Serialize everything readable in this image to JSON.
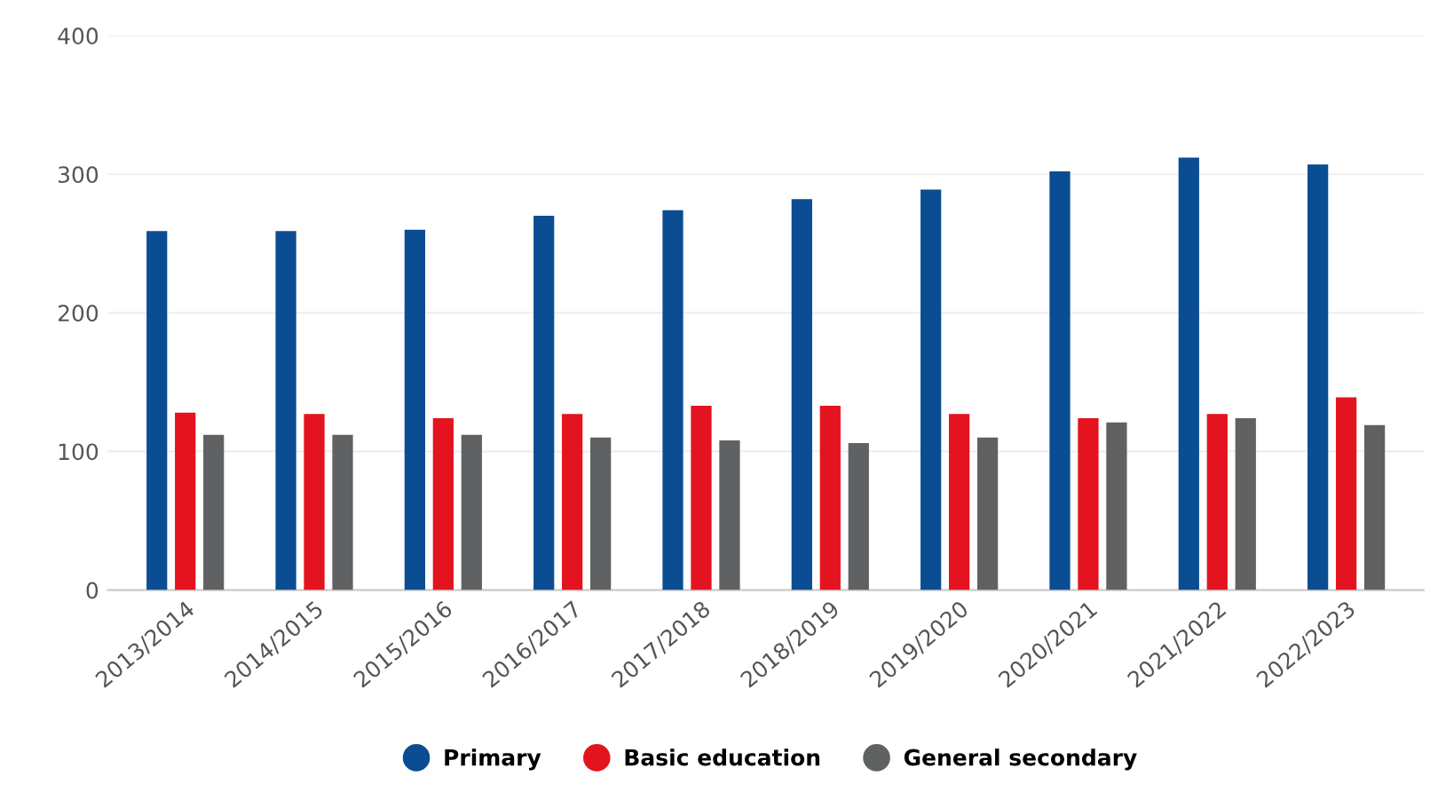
{
  "chart_data": {
    "type": "bar",
    "categories": [
      "2013/2014",
      "2014/2015",
      "2015/2016",
      "2016/2017",
      "2017/2018",
      "2018/2019",
      "2019/2020",
      "2020/2021",
      "2021/2022",
      "2022/2023"
    ],
    "series": [
      {
        "name": "Primary",
        "color": "#0b4d92",
        "values": [
          259,
          259,
          260,
          270,
          274,
          282,
          289,
          302,
          312,
          307
        ]
      },
      {
        "name": "Basic education",
        "color": "#e3141f",
        "values": [
          128,
          127,
          124,
          127,
          133,
          133,
          127,
          124,
          127,
          139
        ]
      },
      {
        "name": "General secondary",
        "color": "#5f6163",
        "values": [
          112,
          112,
          112,
          110,
          108,
          106,
          110,
          121,
          124,
          119
        ]
      }
    ],
    "ylim": [
      0,
      400
    ],
    "yticks": [
      0,
      100,
      200,
      300,
      400
    ],
    "grid": "y",
    "legend": "bottom"
  }
}
